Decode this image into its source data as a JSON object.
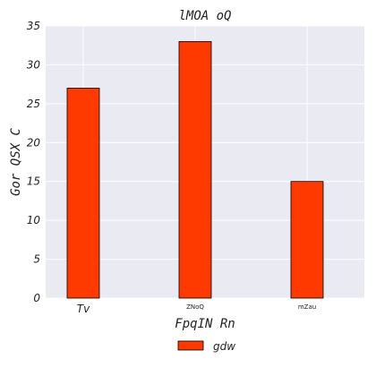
{
  "chart_data": {
    "type": "bar",
    "title": "lMOA oQ",
    "xlabel": "FpqIN  Rn",
    "ylabel": "Gor QSX C",
    "categories": [
      "Tv",
      "ZNoQ",
      "mZau"
    ],
    "series": [
      {
        "name": "gdw",
        "values": [
          27,
          33,
          15
        ],
        "color": "#ff3a00"
      }
    ],
    "ylim": [
      0,
      35
    ],
    "yticks": [
      0,
      5,
      10,
      15,
      20,
      25,
      30,
      35
    ],
    "grid": true,
    "legend_position": "bottom-center",
    "background_color": "#eaeaf2",
    "grid_color": "#ffffff"
  }
}
